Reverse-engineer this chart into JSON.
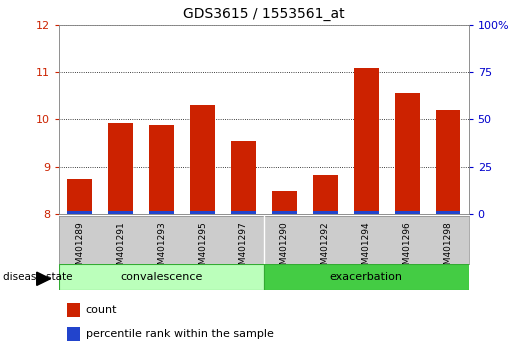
{
  "title": "GDS3615 / 1553561_at",
  "samples": [
    "GSM401289",
    "GSM401291",
    "GSM401293",
    "GSM401295",
    "GSM401297",
    "GSM401290",
    "GSM401292",
    "GSM401294",
    "GSM401296",
    "GSM401298"
  ],
  "count_values": [
    8.75,
    9.92,
    9.88,
    10.3,
    9.55,
    8.48,
    8.83,
    11.08,
    10.55,
    10.2
  ],
  "percentile_values": [
    0.07,
    0.065,
    0.065,
    0.07,
    0.065,
    0.065,
    0.065,
    0.065,
    0.065,
    0.065
  ],
  "bar_base": 8.0,
  "ylim_left": [
    8.0,
    12.0
  ],
  "ylim_right": [
    0,
    100
  ],
  "yticks_left": [
    8,
    9,
    10,
    11,
    12
  ],
  "yticks_right": [
    0,
    25,
    50,
    75,
    100
  ],
  "group1_label": "convalescence",
  "group2_label": "exacerbation",
  "group1_count": 5,
  "group2_count": 5,
  "bar_color_count": "#cc2200",
  "bar_color_percentile": "#2244cc",
  "group1_bg": "#bbffbb",
  "group2_bg": "#44cc44",
  "tick_area_bg": "#cccccc",
  "left_tick_color": "#cc2200",
  "right_tick_color": "#0000cc",
  "legend_count": "count",
  "legend_percentile": "percentile rank within the sample",
  "disease_state_label": "disease state"
}
